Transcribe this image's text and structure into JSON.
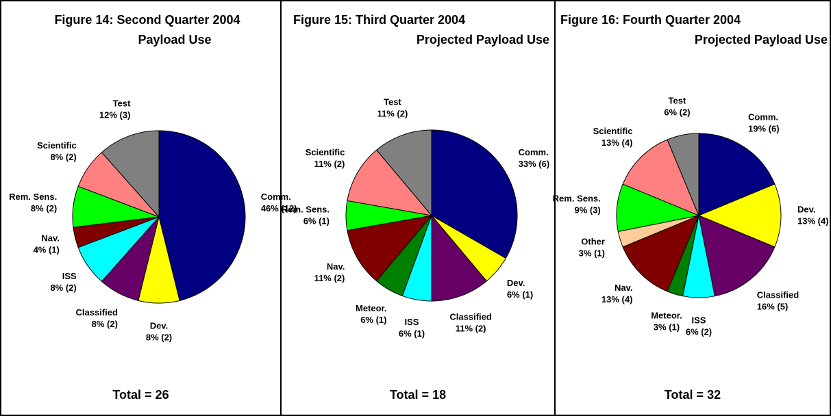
{
  "chart_data": [
    {
      "type": "pie",
      "title": [
        "Figure 14: Second Quarter 2004",
        "Payload Use"
      ],
      "categories": [
        "Comm.",
        "Dev.",
        "Classified",
        "ISS",
        "Nav.",
        "Rem. Sens.",
        "Scientific",
        "Test"
      ],
      "values": [
        12,
        2,
        2,
        2,
        1,
        2,
        2,
        3
      ],
      "value_labels": [
        "46% (12)",
        "8% (2)",
        "8% (2)",
        "8% (2)",
        "4% (1)",
        "8% (2)",
        "8% (2)",
        "12% (3)"
      ],
      "colors": [
        "#000080",
        "#ffff00",
        "#660066",
        "#00ffff",
        "#800000",
        "#00ff00",
        "#ff8080",
        "#808080"
      ],
      "footer": "Total = 26"
    },
    {
      "type": "pie",
      "title": [
        "Figure 15: Third Quarter 2004",
        "Projected Payload Use"
      ],
      "categories": [
        "Comm.",
        "Dev.",
        "Classified",
        "ISS",
        "Meteor.",
        "Nav.",
        "Rem. Sens.",
        "Scientific",
        "Test"
      ],
      "values": [
        6,
        1,
        2,
        1,
        1,
        2,
        1,
        2,
        2
      ],
      "value_labels": [
        "33% (6)",
        "6% (1)",
        "11% (2)",
        "6% (1)",
        "6% (1)",
        "11% (2)",
        "6% (1)",
        "11% (2)",
        "11% (2)"
      ],
      "colors": [
        "#000080",
        "#ffff00",
        "#660066",
        "#00ffff",
        "#008000",
        "#800000",
        "#00ff00",
        "#ff8080",
        "#808080"
      ],
      "footer": "Total = 18"
    },
    {
      "type": "pie",
      "title": [
        "Figure 16: Fourth Quarter 2004",
        "Projected Payload Use"
      ],
      "categories": [
        "Comm.",
        "Dev.",
        "Classified",
        "ISS",
        "Meteor.",
        "Nav.",
        "Other",
        "Rem. Sens.",
        "Scientific",
        "Test"
      ],
      "values": [
        6,
        4,
        5,
        2,
        1,
        4,
        1,
        3,
        4,
        2
      ],
      "value_labels": [
        "19% (6)",
        "13% (4)",
        "16% (5)",
        "6% (2)",
        "3% (1)",
        "13% (4)",
        "3% (1)",
        "9% (3)",
        "13% (4)",
        "6% (2)"
      ],
      "colors": [
        "#000080",
        "#ffff00",
        "#660066",
        "#00ffff",
        "#008000",
        "#800000",
        "#ffcc99",
        "#00ff00",
        "#ff8080",
        "#808080"
      ],
      "footer": "Total = 32"
    }
  ]
}
